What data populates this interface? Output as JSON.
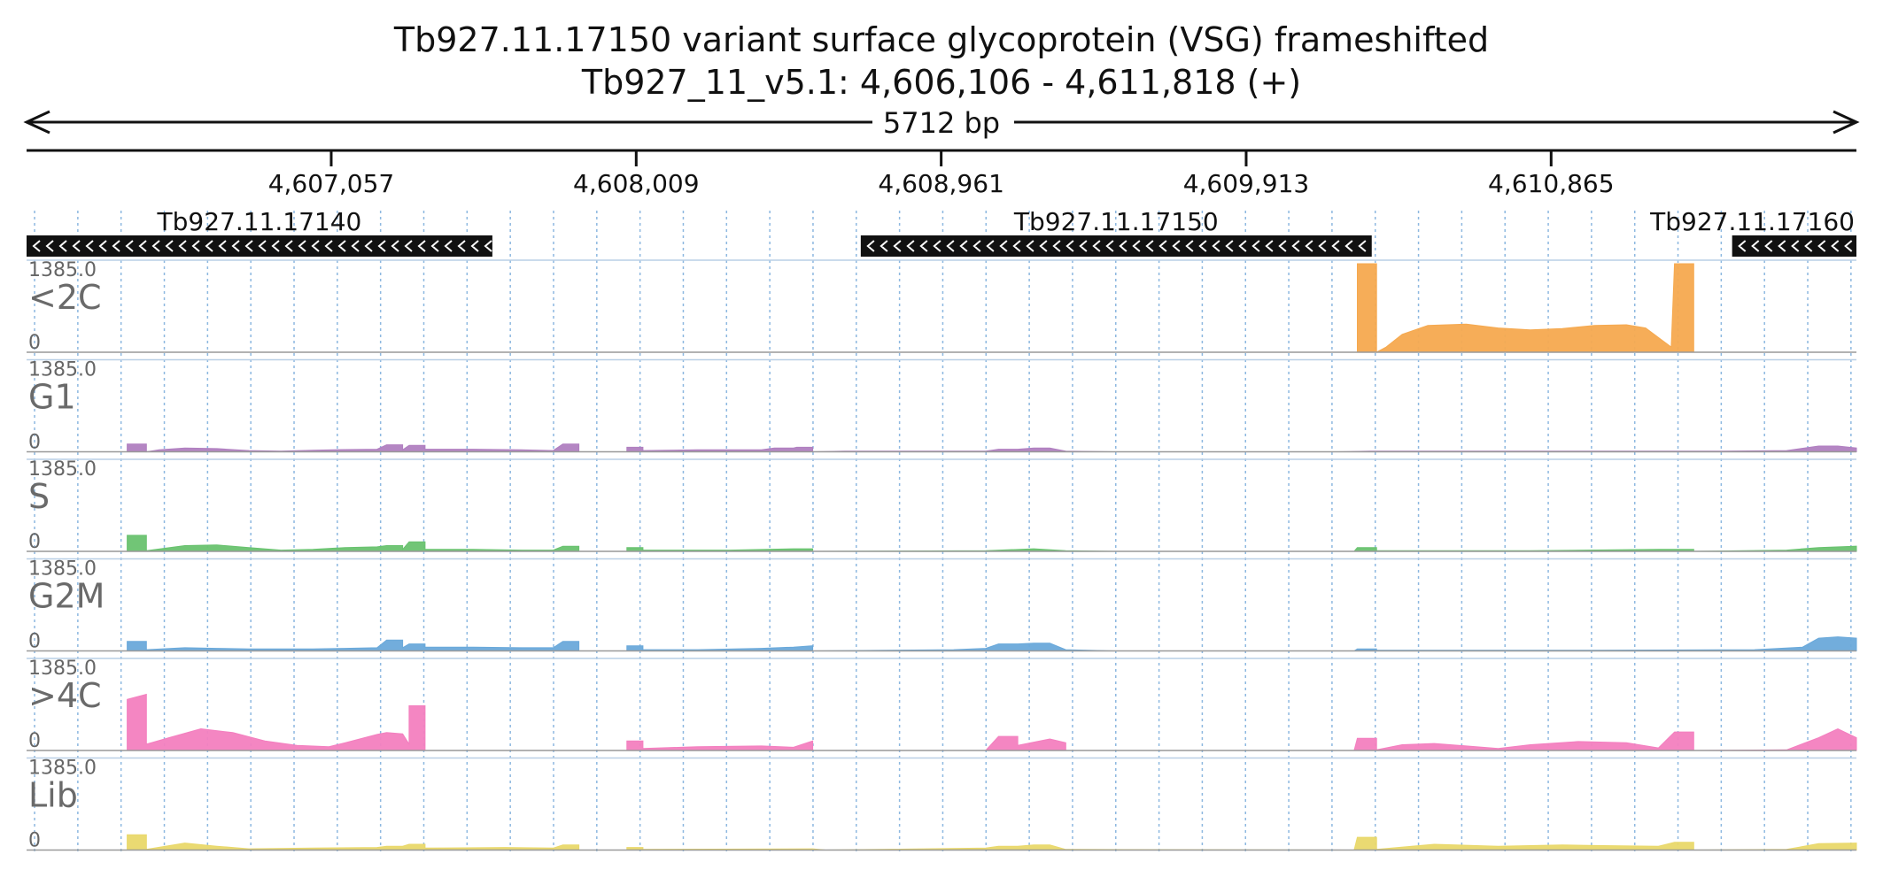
{
  "header": {
    "title": "Tb927.11.17150  variant surface glycoprotein (VSG)  frameshifted",
    "location": "Tb927_11_v5.1: 4,606,106 - 4,611,818 (+)",
    "span_label": "5712 bp"
  },
  "chart_data": {
    "type": "area",
    "region": {
      "chrom": "Tb927_11_v5.1",
      "start": 4606106,
      "end": 4611818,
      "strand": "+"
    },
    "x_ticks": [
      {
        "pos": 4607057,
        "label": "4,607,057"
      },
      {
        "pos": 4608009,
        "label": "4,608,009"
      },
      {
        "pos": 4608961,
        "label": "4,608,961"
      },
      {
        "pos": 4609913,
        "label": "4,609,913"
      },
      {
        "pos": 4610865,
        "label": "4,610,865"
      }
    ],
    "genes": [
      {
        "name": "Tb927.11.17140",
        "start": 4606106,
        "end": 4607560,
        "strand": "-"
      },
      {
        "name": "Tb927.11.17150",
        "start": 4608710,
        "end": 4610305,
        "strand": "-"
      },
      {
        "name": "Tb927.11.17160",
        "start": 4611430,
        "end": 4611818,
        "strand": "-"
      }
    ],
    "y_max_label": "1385.0",
    "y_min_label": "0",
    "ylim": [
      0,
      1385
    ],
    "grid": "vertical dotted lines every ~135 bp",
    "series": [
      {
        "name": "<2C",
        "color": "#f5a94f",
        "points": [
          [
            4610260,
            0
          ],
          [
            4610260,
            1385
          ],
          [
            4610320,
            1385
          ],
          [
            4610320,
            0
          ],
          [
            4610350,
            80
          ],
          [
            4610400,
            280
          ],
          [
            4610480,
            420
          ],
          [
            4610600,
            440
          ],
          [
            4610700,
            380
          ],
          [
            4610800,
            350
          ],
          [
            4610900,
            370
          ],
          [
            4611000,
            420
          ],
          [
            4611100,
            430
          ],
          [
            4611160,
            380
          ],
          [
            4611240,
            80
          ],
          [
            4611250,
            1385
          ],
          [
            4611310,
            1385
          ],
          [
            4611310,
            0
          ]
        ]
      },
      {
        "name": "G1",
        "color": "#b07fc0",
        "points": [
          [
            4606420,
            0
          ],
          [
            4606420,
            120
          ],
          [
            4606480,
            120
          ],
          [
            4606480,
            0
          ],
          [
            4606520,
            30
          ],
          [
            4606600,
            60
          ],
          [
            4606700,
            50
          ],
          [
            4606800,
            20
          ],
          [
            4606900,
            10
          ],
          [
            4607000,
            25
          ],
          [
            4607100,
            35
          ],
          [
            4607200,
            40
          ],
          [
            4607230,
            110
          ],
          [
            4607280,
            110
          ],
          [
            4607280,
            30
          ],
          [
            4607300,
            100
          ],
          [
            4607350,
            100
          ],
          [
            4607350,
            40
          ],
          [
            4607500,
            40
          ],
          [
            4607650,
            30
          ],
          [
            4607750,
            20
          ],
          [
            4607780,
            120
          ],
          [
            4607830,
            120
          ],
          [
            4607830,
            0
          ],
          [
            4607980,
            0
          ],
          [
            4607980,
            70
          ],
          [
            4608030,
            70
          ],
          [
            4608030,
            20
          ],
          [
            4608200,
            30
          ],
          [
            4608400,
            30
          ],
          [
            4608440,
            60
          ],
          [
            4608500,
            60
          ],
          [
            4608510,
            70
          ],
          [
            4608560,
            70
          ],
          [
            4608560,
            0
          ],
          [
            4608660,
            10
          ],
          [
            4609000,
            10
          ],
          [
            4609100,
            10
          ],
          [
            4609140,
            40
          ],
          [
            4609200,
            40
          ],
          [
            4609250,
            60
          ],
          [
            4609300,
            60
          ],
          [
            4609350,
            10
          ],
          [
            4609500,
            0
          ],
          [
            4610200,
            0
          ],
          [
            4610300,
            10
          ],
          [
            4611000,
            10
          ],
          [
            4611400,
            10
          ],
          [
            4611600,
            20
          ],
          [
            4611700,
            90
          ],
          [
            4611760,
            90
          ],
          [
            4611818,
            60
          ]
        ]
      },
      {
        "name": "S",
        "color": "#69c26f",
        "points": [
          [
            4606420,
            0
          ],
          [
            4606420,
            250
          ],
          [
            4606480,
            250
          ],
          [
            4606480,
            10
          ],
          [
            4606600,
            90
          ],
          [
            4606700,
            100
          ],
          [
            4606800,
            60
          ],
          [
            4606900,
            20
          ],
          [
            4607000,
            30
          ],
          [
            4607100,
            60
          ],
          [
            4607200,
            70
          ],
          [
            4607230,
            90
          ],
          [
            4607280,
            90
          ],
          [
            4607280,
            30
          ],
          [
            4607300,
            150
          ],
          [
            4607350,
            150
          ],
          [
            4607350,
            30
          ],
          [
            4607500,
            30
          ],
          [
            4607650,
            20
          ],
          [
            4607750,
            20
          ],
          [
            4607780,
            80
          ],
          [
            4607830,
            80
          ],
          [
            4607830,
            0
          ],
          [
            4607980,
            0
          ],
          [
            4607980,
            60
          ],
          [
            4608030,
            60
          ],
          [
            4608030,
            20
          ],
          [
            4608300,
            20
          ],
          [
            4608500,
            40
          ],
          [
            4608560,
            40
          ],
          [
            4608560,
            0
          ],
          [
            4609100,
            10
          ],
          [
            4609250,
            40
          ],
          [
            4609350,
            10
          ],
          [
            4609500,
            0
          ],
          [
            4610250,
            0
          ],
          [
            4610260,
            60
          ],
          [
            4610320,
            60
          ],
          [
            4610320,
            10
          ],
          [
            4610800,
            10
          ],
          [
            4611200,
            30
          ],
          [
            4611310,
            30
          ],
          [
            4611310,
            0
          ],
          [
            4611600,
            20
          ],
          [
            4611700,
            60
          ],
          [
            4611818,
            80
          ]
        ]
      },
      {
        "name": "G2M",
        "color": "#6aa9da",
        "points": [
          [
            4606420,
            0
          ],
          [
            4606420,
            150
          ],
          [
            4606480,
            150
          ],
          [
            4606480,
            20
          ],
          [
            4606600,
            50
          ],
          [
            4606700,
            40
          ],
          [
            4606800,
            30
          ],
          [
            4607000,
            30
          ],
          [
            4607100,
            40
          ],
          [
            4607200,
            50
          ],
          [
            4607230,
            170
          ],
          [
            4607280,
            170
          ],
          [
            4607280,
            50
          ],
          [
            4607300,
            110
          ],
          [
            4607350,
            110
          ],
          [
            4607350,
            60
          ],
          [
            4607500,
            60
          ],
          [
            4607650,
            50
          ],
          [
            4607750,
            50
          ],
          [
            4607780,
            150
          ],
          [
            4607830,
            150
          ],
          [
            4607830,
            0
          ],
          [
            4607980,
            0
          ],
          [
            4607980,
            80
          ],
          [
            4608030,
            80
          ],
          [
            4608030,
            20
          ],
          [
            4608200,
            20
          ],
          [
            4608400,
            40
          ],
          [
            4608500,
            60
          ],
          [
            4608560,
            80
          ],
          [
            4608560,
            0
          ],
          [
            4609000,
            20
          ],
          [
            4609100,
            40
          ],
          [
            4609140,
            110
          ],
          [
            4609200,
            110
          ],
          [
            4609250,
            120
          ],
          [
            4609300,
            120
          ],
          [
            4609350,
            20
          ],
          [
            4609500,
            0
          ],
          [
            4610250,
            0
          ],
          [
            4610260,
            30
          ],
          [
            4610320,
            30
          ],
          [
            4610320,
            10
          ],
          [
            4611000,
            10
          ],
          [
            4611500,
            20
          ],
          [
            4611650,
            60
          ],
          [
            4611700,
            200
          ],
          [
            4611760,
            220
          ],
          [
            4611818,
            200
          ]
        ]
      },
      {
        "name": ">4C",
        "color": "#f37fbf",
        "points": [
          [
            4606420,
            0
          ],
          [
            4606420,
            800
          ],
          [
            4606480,
            880
          ],
          [
            4606480,
            100
          ],
          [
            4606550,
            200
          ],
          [
            4606650,
            340
          ],
          [
            4606750,
            280
          ],
          [
            4606850,
            150
          ],
          [
            4606950,
            80
          ],
          [
            4607050,
            60
          ],
          [
            4607100,
            120
          ],
          [
            4607200,
            250
          ],
          [
            4607230,
            280
          ],
          [
            4607280,
            260
          ],
          [
            4607300,
            100
          ],
          [
            4607300,
            700
          ],
          [
            4607350,
            700
          ],
          [
            4607350,
            0
          ],
          [
            4607980,
            0
          ],
          [
            4607980,
            150
          ],
          [
            4608030,
            150
          ],
          [
            4608030,
            30
          ],
          [
            4608200,
            60
          ],
          [
            4608400,
            70
          ],
          [
            4608500,
            50
          ],
          [
            4608560,
            150
          ],
          [
            4608560,
            0
          ],
          [
            4609100,
            0
          ],
          [
            4609140,
            220
          ],
          [
            4609200,
            220
          ],
          [
            4609200,
            80
          ],
          [
            4609300,
            180
          ],
          [
            4609350,
            120
          ],
          [
            4609350,
            0
          ],
          [
            4610250,
            0
          ],
          [
            4610260,
            190
          ],
          [
            4610320,
            190
          ],
          [
            4610320,
            10
          ],
          [
            4610400,
            90
          ],
          [
            4610500,
            110
          ],
          [
            4610600,
            70
          ],
          [
            4610700,
            30
          ],
          [
            4610800,
            90
          ],
          [
            4610950,
            140
          ],
          [
            4611100,
            120
          ],
          [
            4611200,
            40
          ],
          [
            4611250,
            290
          ],
          [
            4611310,
            290
          ],
          [
            4611310,
            0
          ],
          [
            4611600,
            10
          ],
          [
            4611700,
            200
          ],
          [
            4611760,
            340
          ],
          [
            4611818,
            200
          ]
        ]
      },
      {
        "name": "Lib",
        "color": "#e9d86a",
        "points": [
          [
            4606420,
            0
          ],
          [
            4606420,
            240
          ],
          [
            4606480,
            240
          ],
          [
            4606480,
            10
          ],
          [
            4606600,
            110
          ],
          [
            4606700,
            60
          ],
          [
            4606800,
            20
          ],
          [
            4607000,
            30
          ],
          [
            4607200,
            40
          ],
          [
            4607230,
            60
          ],
          [
            4607280,
            60
          ],
          [
            4607300,
            90
          ],
          [
            4607350,
            90
          ],
          [
            4607350,
            30
          ],
          [
            4607600,
            40
          ],
          [
            4607750,
            30
          ],
          [
            4607780,
            80
          ],
          [
            4607830,
            80
          ],
          [
            4607830,
            0
          ],
          [
            4607980,
            0
          ],
          [
            4607980,
            40
          ],
          [
            4608030,
            40
          ],
          [
            4608030,
            10
          ],
          [
            4608560,
            20
          ],
          [
            4608600,
            0
          ],
          [
            4609100,
            30
          ],
          [
            4609140,
            60
          ],
          [
            4609200,
            60
          ],
          [
            4609250,
            80
          ],
          [
            4609300,
            80
          ],
          [
            4609350,
            10
          ],
          [
            4610250,
            0
          ],
          [
            4610260,
            200
          ],
          [
            4610320,
            200
          ],
          [
            4610320,
            10
          ],
          [
            4610500,
            90
          ],
          [
            4610700,
            60
          ],
          [
            4610900,
            80
          ],
          [
            4611000,
            70
          ],
          [
            4611200,
            60
          ],
          [
            4611250,
            120
          ],
          [
            4611310,
            120
          ],
          [
            4611310,
            0
          ],
          [
            4611600,
            10
          ],
          [
            4611700,
            100
          ],
          [
            4611818,
            110
          ]
        ]
      }
    ]
  }
}
